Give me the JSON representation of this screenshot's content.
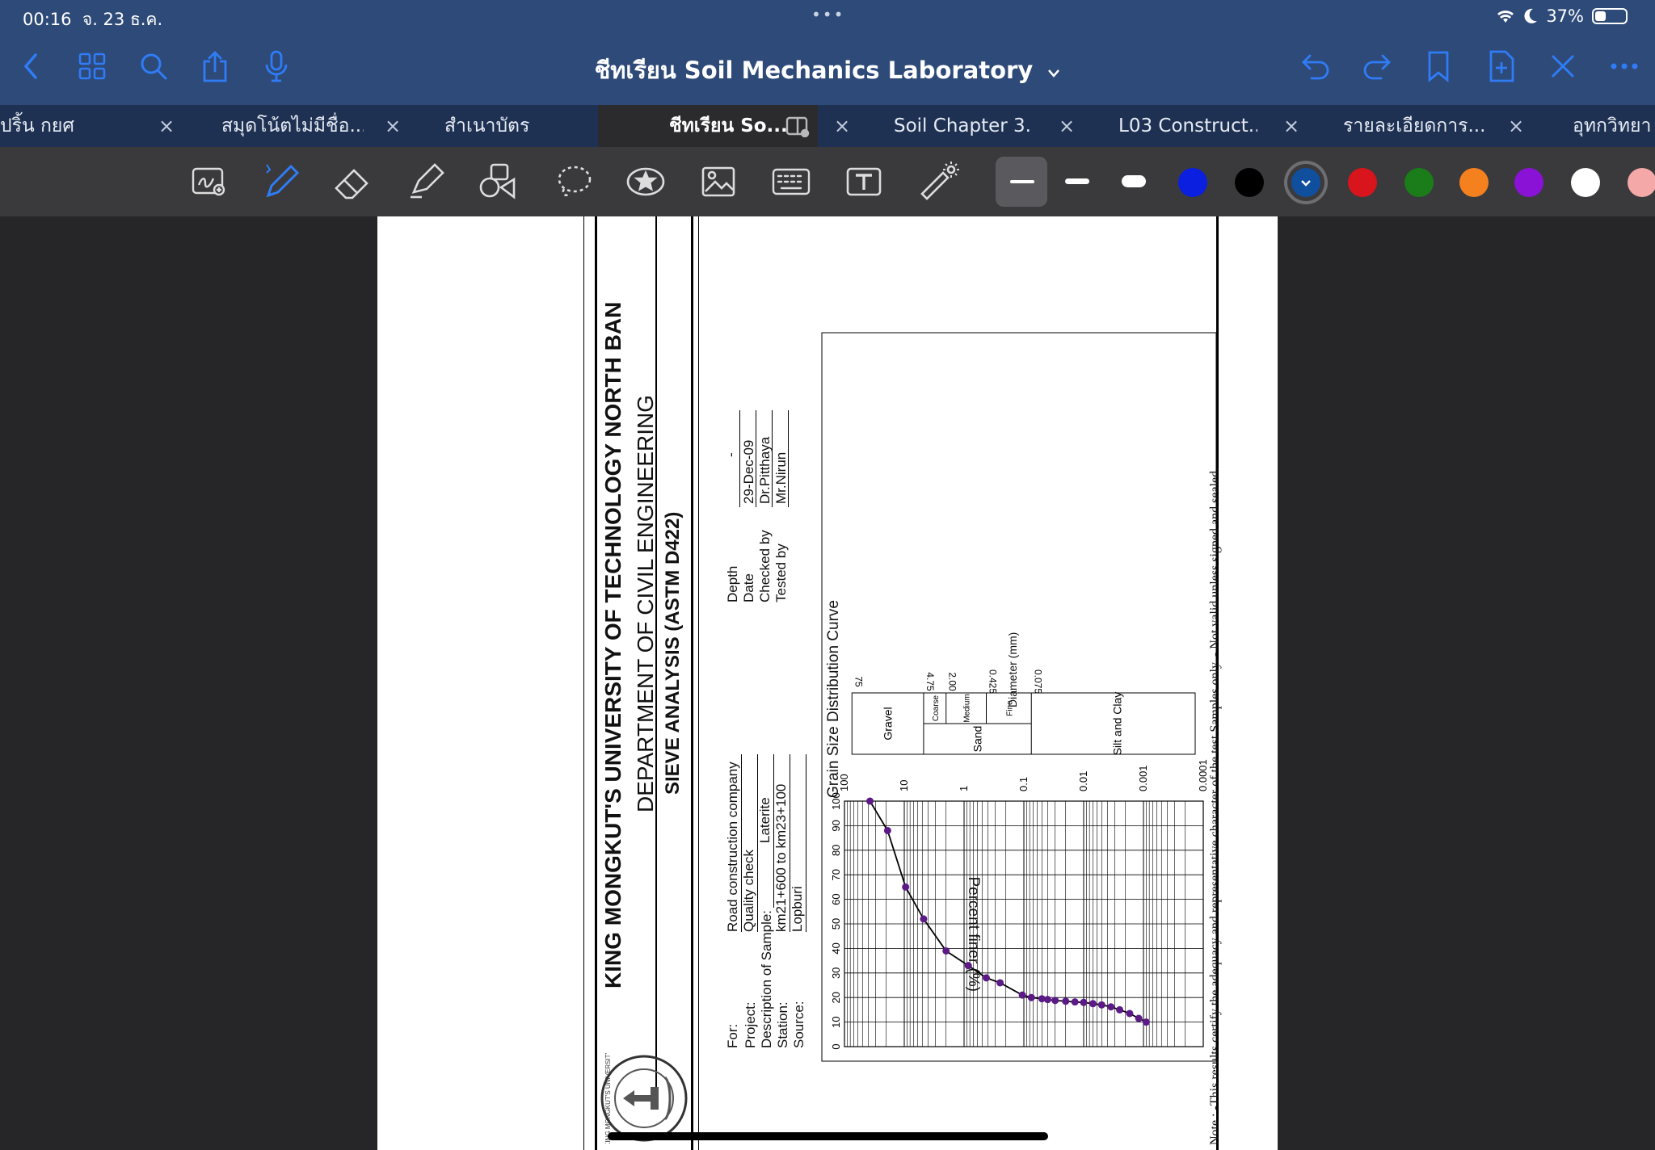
{
  "status": {
    "time": "00:16",
    "date": "จ. 23 ธ.ค.",
    "battery": "37%",
    "battery_level": 0.37
  },
  "nav": {
    "title": "ชีทเรียน Soil Mechanics Laboratory",
    "icons_left": [
      "back-chevron-icon",
      "grid-icon",
      "search-icon",
      "share-icon",
      "microphone-icon"
    ],
    "icons_right": [
      "undo-icon",
      "redo-icon",
      "bookmark-icon",
      "add-page-icon",
      "close-icon",
      "more-icon"
    ]
  },
  "tabs": [
    {
      "label": "ปริ้น กยศ"
    },
    {
      "label": "สมุดโน้ตไม่มีชื่อ..."
    },
    {
      "label": "สำเนาบัตร"
    },
    {
      "label": "ชีทเรียน So...",
      "active": true
    },
    {
      "label": "Soil Chapter 3..."
    },
    {
      "label": "L03 Construct..."
    },
    {
      "label": "รายละเอียดการ..."
    },
    {
      "label": "อุทกวิทยา"
    }
  ],
  "toolbar": {
    "tools": [
      "lasso-zoom-icon",
      "pen-icon",
      "eraser-icon",
      "highlighter-icon",
      "shapes-icon",
      "lasso-icon",
      "sticker-icon",
      "image-icon",
      "keyboard-icon",
      "text-box-icon",
      "laser-pointer-icon"
    ],
    "stroke_widths": [
      "thin",
      "medium",
      "thick"
    ],
    "colors": [
      "#0a1fe0",
      "#000000",
      "#0f4f9e",
      "#d8141c",
      "#1a7d1a",
      "#f5801e",
      "#8a12d6",
      "#ffffff",
      "#f5a8a8"
    ],
    "selected_color": "#0f4f9e"
  },
  "document": {
    "university": "KING MONGKUT'S UNIVERSITY OF TECHNOLOGY NORTH BAN",
    "department": "DEPARTMENT OF CIVIL ENGINEERING",
    "test": "SIEVE ANALYSIS (ASTM D422)",
    "labels": {
      "for": "For:",
      "project": "Project:",
      "description": "Description of Sample:",
      "station": "Station:",
      "source": "Source:",
      "depth": "Depth",
      "date": "Date",
      "checked": "Checked by",
      "tested": "Tested by"
    },
    "values": {
      "for": "Road construction company",
      "project": "Quality check",
      "description": "Laterite",
      "station": "km21+600 to km23+100",
      "source": "Lopburi",
      "depth": "-",
      "date": "29-Dec-09",
      "checked": "Dr.Pitthaya",
      "tested": "Mr.Nirun"
    },
    "note": "Note : -This results certify the adequacy and representative character of the test Samples only. - Not valid unless signed and sealed."
  },
  "chart_data": {
    "type": "scatter",
    "title": "Grain Size Distribution Curve",
    "xlabel": "Diameter (mm)",
    "ylabel": "Percent finer (%)",
    "x_scale": "log",
    "xlim": [
      100,
      0.0001
    ],
    "ylim": [
      0,
      100
    ],
    "x_ticks": [
      "100",
      "10",
      "1",
      "0.1",
      "0.01",
      "0.001",
      "0.0001"
    ],
    "y_ticks": [
      "100",
      "90",
      "80",
      "70",
      "60",
      "50",
      "40",
      "30",
      "20",
      "10",
      "0"
    ],
    "series": [
      {
        "marker_color": "#5b1a86",
        "points": [
          [
            37.5,
            100
          ],
          [
            19,
            88
          ],
          [
            9.5,
            65
          ],
          [
            4.75,
            52
          ],
          [
            2.0,
            39
          ],
          [
            0.85,
            33
          ],
          [
            0.425,
            28
          ],
          [
            0.25,
            26
          ],
          [
            0.106,
            21
          ],
          [
            0.075,
            20
          ],
          [
            0.05,
            19.5
          ],
          [
            0.04,
            19.2
          ],
          [
            0.03,
            18.8
          ],
          [
            0.02,
            18.5
          ],
          [
            0.014,
            18.2
          ],
          [
            0.01,
            18
          ],
          [
            0.007,
            17.5
          ],
          [
            0.005,
            17
          ],
          [
            0.0035,
            16.2
          ],
          [
            0.0025,
            15
          ],
          [
            0.0017,
            13.5
          ],
          [
            0.0012,
            11.5
          ],
          [
            0.0009,
            10
          ]
        ]
      }
    ],
    "classification": {
      "row_labels": [
        "Gravel",
        "Sand",
        "Silt and Clay"
      ],
      "sand_subdivisions": [
        "Coarse",
        "Medium",
        "Fine"
      ],
      "boundary_labels": [
        "75",
        "4.75",
        "2.00",
        "0.425",
        "0.075"
      ]
    }
  }
}
